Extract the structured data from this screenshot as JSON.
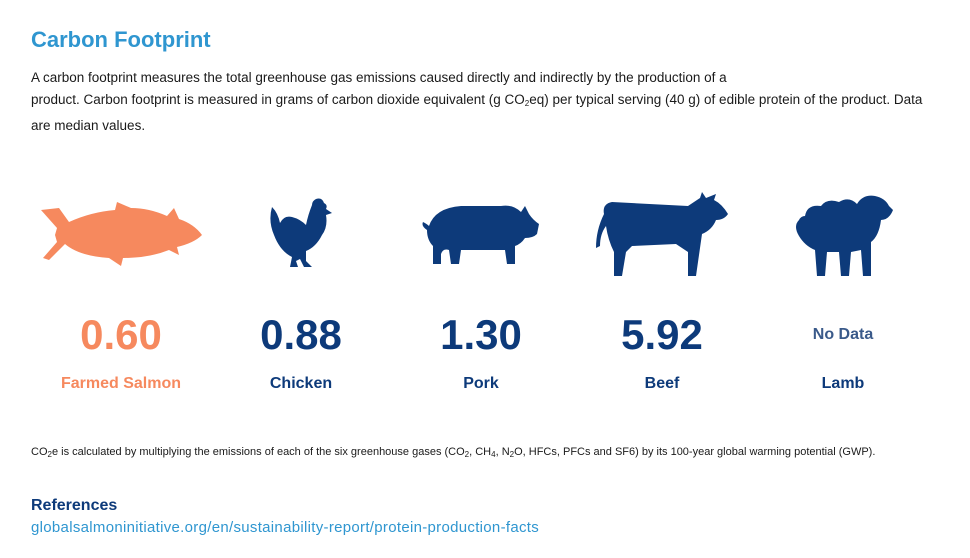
{
  "header": {
    "title": "Carbon Footprint",
    "desc_part1": "A carbon footprint measures the total greenhouse gas emissions caused directly and indirectly by the production of a",
    "desc_part2": "product. Carbon footprint is measured in grams of carbon dioxide equivalent (g CO",
    "desc_sub": "2",
    "desc_part3": "eq) per typical serving (40 g) of edible protein of the product. Data are median values."
  },
  "chart_data": {
    "type": "table",
    "title": "Carbon Footprint",
    "categories": [
      "Farmed Salmon",
      "Chicken",
      "Pork",
      "Beef",
      "Lamb"
    ],
    "values": [
      0.6,
      0.88,
      1.3,
      5.92,
      null
    ],
    "value_labels": [
      "0.60",
      "0.88",
      "1.30",
      "5.92",
      "No Data"
    ],
    "icons": [
      "salmon-icon",
      "chicken-icon",
      "pig-icon",
      "cow-icon",
      "sheep-icon"
    ],
    "colors": {
      "highlight": "#f6895e",
      "default": "#0d3a7a",
      "nodata": "#3a5a8a"
    },
    "highlight_index": 0
  },
  "footnote": {
    "t1": "CO",
    "s1": "2",
    "t2": "e is calculated by multiplying the emissions of each of the six greenhouse gases (CO",
    "s2": "2",
    "t3": ", CH",
    "s3": "4",
    "t4": ", N",
    "s4": "2",
    "t5": "O, HFCs, PFCs and SF6) by its 100-year global warming potential (GWP)."
  },
  "references": {
    "title": "References",
    "link": "globalsalmoninitiative.org/en/sustainability-report/protein-production-facts"
  }
}
